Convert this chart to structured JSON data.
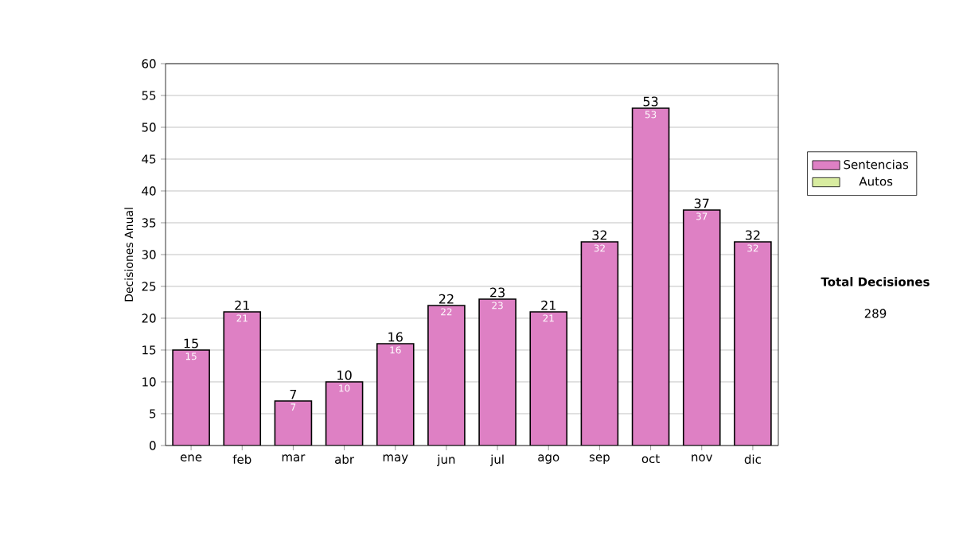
{
  "chart_data": {
    "type": "bar",
    "ylabel": "Decisiones Anual",
    "categories": [
      "ene",
      "feb",
      "mar",
      "abr",
      "may",
      "jun",
      "jul",
      "ago",
      "sep",
      "oct",
      "nov",
      "dic"
    ],
    "series": [
      {
        "name": "Sentencias",
        "color": "#de80c4",
        "values": [
          15,
          21,
          7,
          10,
          16,
          22,
          23,
          21,
          32,
          53,
          37,
          32
        ]
      },
      {
        "name": "Autos",
        "color": "#d8eca0",
        "values": [
          null,
          null,
          null,
          null,
          null,
          null,
          null,
          null,
          null,
          null,
          null,
          null
        ]
      }
    ],
    "stacked": true,
    "totals": [
      "15",
      "21",
      "7",
      "10",
      "16",
      "22",
      "23",
      "21",
      "32",
      "53",
      "37",
      "32"
    ],
    "data_labels": true,
    "ylim": [
      0,
      60
    ],
    "yticks": [
      0,
      5,
      10,
      15,
      20,
      25,
      30,
      35,
      40,
      45,
      50,
      55,
      60
    ],
    "grid": "y",
    "legend": "right",
    "annotations": [
      "Total Decisiones",
      "289"
    ]
  }
}
